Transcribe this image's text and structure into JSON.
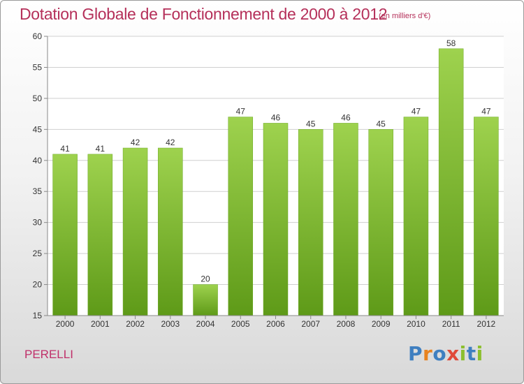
{
  "chart_data": {
    "type": "bar",
    "title": "Dotation Globale de Fonctionnement de 2000 à 2012",
    "subtitle": "(en milliers d'€)",
    "categories": [
      "2000",
      "2001",
      "2002",
      "2003",
      "2004",
      "2005",
      "2006",
      "2007",
      "2008",
      "2009",
      "2010",
      "2011",
      "2012"
    ],
    "values": [
      41,
      41,
      42,
      42,
      20,
      47,
      46,
      45,
      46,
      45,
      47,
      58,
      47
    ],
    "ylim": [
      15,
      60
    ],
    "yticks": [
      15,
      20,
      25,
      30,
      35,
      40,
      45,
      50,
      55,
      60
    ],
    "grid": true,
    "bar_color": "#7ab82e",
    "xlabel": "",
    "ylabel": ""
  },
  "footer": {
    "commune": "PERELLI",
    "brand_letters": [
      {
        "ch": "P",
        "color": "#3f7fc0"
      },
      {
        "ch": "r",
        "color": "#e8831f"
      },
      {
        "ch": "o",
        "color": "#3f7fc0"
      },
      {
        "ch": "x",
        "color": "#e04a3a"
      },
      {
        "ch": "i",
        "color": "#8cbf2f"
      },
      {
        "ch": "t",
        "color": "#3f7fc0"
      },
      {
        "ch": "i",
        "color": "#8cbf2f"
      }
    ]
  },
  "colors": {
    "title": "#b5305a",
    "commune": "#c0306a"
  }
}
